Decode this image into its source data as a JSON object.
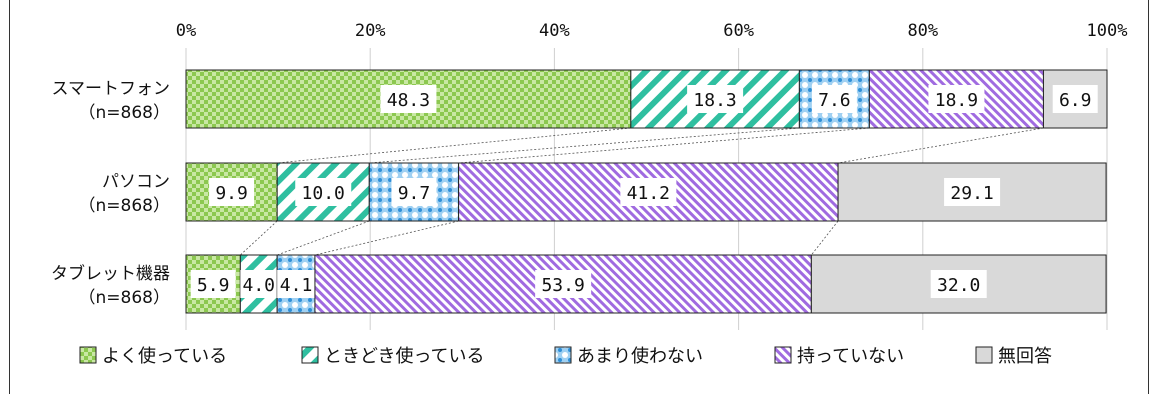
{
  "chart_data": {
    "type": "bar",
    "orientation": "horizontal",
    "stacked": "percent",
    "x_ticks": [
      "0%",
      "20%",
      "40%",
      "60%",
      "80%",
      "100%"
    ],
    "xlim": [
      0,
      100
    ],
    "grid": true,
    "legend_position": "bottom",
    "categories": [
      {
        "name": "スマートフォン",
        "n": "（n=868）"
      },
      {
        "name": "パソコン",
        "n": "（n=868）"
      },
      {
        "name": "タブレット機器",
        "n": "（n=868）"
      }
    ],
    "series": [
      {
        "name": "よく使っている",
        "color": "#9bd25a",
        "pattern": "checker",
        "values": [
          48.3,
          9.9,
          5.9
        ],
        "labels": [
          "48.3",
          "9.9",
          "5.9"
        ]
      },
      {
        "name": "ときどき使っている",
        "color": "#2fbfa0",
        "pattern": "diag-wide",
        "values": [
          18.3,
          10.0,
          4.0
        ],
        "labels": [
          "18.3",
          "10.0",
          "4.0"
        ]
      },
      {
        "name": "あまり使わない",
        "color": "#2f8fd8",
        "pattern": "dots",
        "values": [
          7.6,
          9.7,
          4.1
        ],
        "labels": [
          "7.6",
          "9.7",
          "4.1"
        ]
      },
      {
        "name": "持っていない",
        "color": "#a06be0",
        "pattern": "diag-narrow",
        "values": [
          18.9,
          41.2,
          53.9
        ],
        "labels": [
          "18.9",
          "41.2",
          "53.9"
        ]
      },
      {
        "name": "無回答",
        "color": "#d9d9d9",
        "pattern": "solid",
        "values": [
          6.9,
          29.1,
          32.0
        ],
        "labels": [
          "6.9",
          "29.1",
          "32.0"
        ]
      }
    ]
  }
}
